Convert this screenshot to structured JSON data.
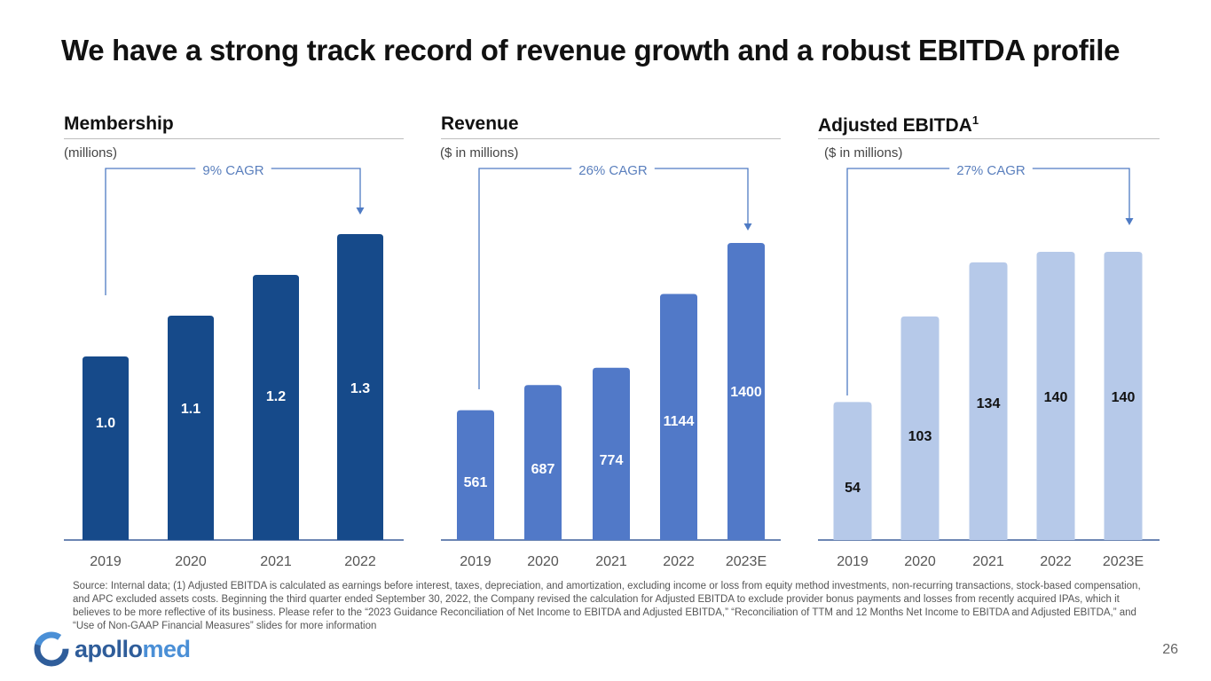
{
  "slide": {
    "title": "We have a strong track record of revenue growth and a robust EBITDA profile",
    "footnote": "Source: Internal data; (1) Adjusted EBITDA is calculated as earnings before interest, taxes, depreciation, and amortization, excluding income or loss from equity method investments, non-recurring transactions, stock-based compensation, and APC excluded assets costs. Beginning the third quarter ended September 30, 2022, the Company revised the calculation for Adjusted EBITDA to exclude provider bonus payments and losses from recently acquired IPAs, which it believes to be more reflective of its business. Please refer to the “2023 Guidance Reconciliation of Net Income to EBITDA and Adjusted EBITDA,” “Reconciliation of TTM and 12 Months Net Income to EBITDA and Adjusted EBITDA,” and “Use of Non-GAAP Financial Measures” slides for more information",
    "logo_main": "apollo",
    "logo_accent": "med",
    "page_number": "26"
  },
  "chart_data": [
    {
      "type": "bar",
      "title": "Membership",
      "title_sup": "",
      "unit": "(millions)",
      "cagr": "9% CAGR",
      "categories": [
        "2019",
        "2020",
        "2021",
        "2022"
      ],
      "values": [
        1.0,
        1.1,
        1.2,
        1.3
      ],
      "labels": [
        "1.0",
        "1.1",
        "1.2",
        "1.3"
      ],
      "color": "#164a8a",
      "label_color": "#ffffff"
    },
    {
      "type": "bar",
      "title": "Revenue",
      "title_sup": "",
      "unit": "($ in millions)",
      "cagr": "26% CAGR",
      "categories": [
        "2019",
        "2020",
        "2021",
        "2022",
        "2023E"
      ],
      "values": [
        561,
        687,
        774,
        1144,
        1400
      ],
      "labels": [
        "561",
        "687",
        "774",
        "1144",
        "1400"
      ],
      "color": "#5179c8",
      "label_color": "#ffffff"
    },
    {
      "type": "bar",
      "title": "Adjusted EBITDA",
      "title_sup": "1",
      "unit": "($ in millions)",
      "cagr": "27% CAGR",
      "categories": [
        "2019",
        "2020",
        "2021",
        "2022",
        "2023E"
      ],
      "values": [
        54,
        103,
        134,
        140,
        140
      ],
      "labels": [
        "54",
        "103",
        "134",
        "140",
        "140"
      ],
      "color": "#b6c9e9",
      "label_color": "#111111"
    }
  ],
  "colors": {
    "axis": "#6c86b3",
    "bracket": "#4f7bc4",
    "cagr_text": "#5a7fbd",
    "tick_text": "#555555"
  }
}
